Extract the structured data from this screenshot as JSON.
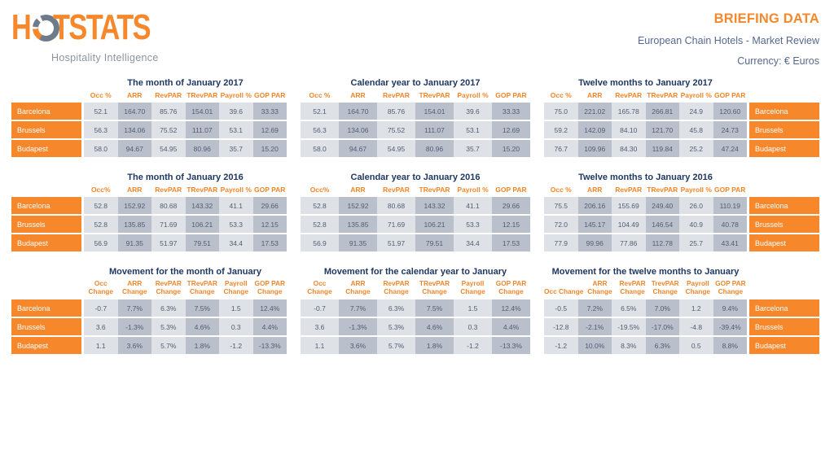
{
  "header": {
    "logo_left": "H",
    "logo_right": "TSTATS",
    "logo_tagline": "Hospitality Intelligence",
    "title": "BRIEFING DATA",
    "subtitle": "European Chain Hotels - Market Review",
    "currency": "Currency: € Euros",
    "accent_orange": "#F6872B",
    "navy": "#1F3864",
    "slate_blue": "#56688E"
  },
  "cities": [
    "Barcelona",
    "Brussels",
    "Budapest"
  ],
  "tables": [
    {
      "title": "The month of January 2017",
      "label_side": "left",
      "movement": false,
      "columns": [
        "Occ %",
        "ARR",
        "RevPAR",
        "TRevPAR",
        "Payroll %",
        "GOP PAR"
      ],
      "rows": [
        {
          "label": "Barcelona",
          "values": [
            "52.1",
            "164.70",
            "85.76",
            "154.01",
            "39.6",
            "33.33"
          ]
        },
        {
          "label": "Brussels",
          "values": [
            "56.3",
            "134.06",
            "75.52",
            "111.07",
            "53.1",
            "12.69"
          ]
        },
        {
          "label": "Budapest",
          "values": [
            "58.0",
            "94.67",
            "54.95",
            "80.96",
            "35.7",
            "15.20"
          ]
        }
      ]
    },
    {
      "title": "Calendar year to January 2017",
      "label_side": "none",
      "movement": false,
      "columns": [
        "Occ %",
        "ARR",
        "RevPAR",
        "TRevPAR",
        "Payroll %",
        "GOP PAR"
      ],
      "rows": [
        {
          "label": "Barcelona",
          "values": [
            "52.1",
            "164.70",
            "85.76",
            "154.01",
            "39.6",
            "33.33"
          ]
        },
        {
          "label": "Brussels",
          "values": [
            "56.3",
            "134.06",
            "75.52",
            "111.07",
            "53.1",
            "12.69"
          ]
        },
        {
          "label": "Budapest",
          "values": [
            "58.0",
            "94.67",
            "54.95",
            "80.96",
            "35.7",
            "15.20"
          ]
        }
      ]
    },
    {
      "title": "Twelve months to January 2017",
      "label_side": "right",
      "movement": false,
      "columns": [
        "Occ %",
        "ARR",
        "RevPAR",
        "TRevPAR",
        "Payroll %",
        "GOP PAR"
      ],
      "rows": [
        {
          "label": "Barcelona",
          "values": [
            "75.0",
            "221.02",
            "165.78",
            "266.81",
            "24.9",
            "120.60"
          ]
        },
        {
          "label": "Brussels",
          "values": [
            "59.2",
            "142.09",
            "84.10",
            "121.70",
            "45.8",
            "24.73"
          ]
        },
        {
          "label": "Budapest",
          "values": [
            "76.7",
            "109.96",
            "84.30",
            "119.84",
            "25.2",
            "47.24"
          ]
        }
      ]
    },
    {
      "title": "The month of January 2016",
      "label_side": "left",
      "movement": false,
      "columns": [
        "Occ%",
        "ARR",
        "RevPAR",
        "TRevPAR",
        "Payroll %",
        "GOP PAR"
      ],
      "rows": [
        {
          "label": "Barcelona",
          "values": [
            "52.8",
            "152.92",
            "80.68",
            "143.32",
            "41.1",
            "29.66"
          ]
        },
        {
          "label": "Brussels",
          "values": [
            "52.8",
            "135.85",
            "71.69",
            "106.21",
            "53.3",
            "12.15"
          ]
        },
        {
          "label": "Budapest",
          "values": [
            "56.9",
            "91.35",
            "51.97",
            "79.51",
            "34.4",
            "17.53"
          ]
        }
      ]
    },
    {
      "title": "Calendar year to January 2016",
      "label_side": "none",
      "movement": false,
      "columns": [
        "Occ%",
        "ARR",
        "RevPAR",
        "TRevPAR",
        "Payroll %",
        "GOP PAR"
      ],
      "rows": [
        {
          "label": "Barcelona",
          "values": [
            "52.8",
            "152.92",
            "80.68",
            "143.32",
            "41.1",
            "29.66"
          ]
        },
        {
          "label": "Brussels",
          "values": [
            "52.8",
            "135.85",
            "71.69",
            "106.21",
            "53.3",
            "12.15"
          ]
        },
        {
          "label": "Budapest",
          "values": [
            "56.9",
            "91.35",
            "51.97",
            "79.51",
            "34.4",
            "17.53"
          ]
        }
      ]
    },
    {
      "title": "Twelve months to January 2016",
      "label_side": "right",
      "movement": false,
      "columns": [
        "Occ %",
        "ARR",
        "RevPAR",
        "TRevPAR",
        "Payroll %",
        "GOP PAR"
      ],
      "rows": [
        {
          "label": "Barcelona",
          "values": [
            "75.5",
            "206.16",
            "155.69",
            "249.40",
            "26.0",
            "110.19"
          ]
        },
        {
          "label": "Brussels",
          "values": [
            "72.0",
            "145.17",
            "104.49",
            "146.54",
            "40.9",
            "40.78"
          ]
        },
        {
          "label": "Budapest",
          "values": [
            "77.9",
            "99.96",
            "77.86",
            "112.78",
            "25.7",
            "43.41"
          ]
        }
      ]
    },
    {
      "title": "Movement for the month of January",
      "label_side": "left",
      "movement": true,
      "columns": [
        "Occ Change",
        "ARR Change",
        "RevPAR Change",
        "TRevPAR Change",
        "Payroll Change",
        "GOP PAR Change"
      ],
      "rows": [
        {
          "label": "Barcelona",
          "values": [
            "-0.7",
            "7.7%",
            "6.3%",
            "7.5%",
            "1.5",
            "12.4%"
          ]
        },
        {
          "label": "Brussels",
          "values": [
            "3.6",
            "-1.3%",
            "5.3%",
            "4.6%",
            "0.3",
            "4.4%"
          ]
        },
        {
          "label": "Budapest",
          "values": [
            "1.1",
            "3.6%",
            "5.7%",
            "1.8%",
            "-1.2",
            "-13.3%"
          ]
        }
      ]
    },
    {
      "title": "Movement for the calendar year to January",
      "label_side": "none",
      "movement": true,
      "columns": [
        "Occ Change",
        "ARR Change",
        "RevPAR Change",
        "TRevPAR Change",
        "Payroll Change",
        "GOP PAR Change"
      ],
      "rows": [
        {
          "label": "Barcelona",
          "values": [
            "-0.7",
            "7.7%",
            "6.3%",
            "7.5%",
            "1.5",
            "12.4%"
          ]
        },
        {
          "label": "Brussels",
          "values": [
            "3.6",
            "-1.3%",
            "5.3%",
            "4.6%",
            "0.3",
            "4.4%"
          ]
        },
        {
          "label": "Budapest",
          "values": [
            "1.1",
            "3.6%",
            "5.7%",
            "1.8%",
            "-1.2",
            "-13.3%"
          ]
        }
      ]
    },
    {
      "title": "Movement for the twelve months to January",
      "label_side": "right",
      "movement": true,
      "columns": [
        "Occ Change",
        "ARR Change",
        "RevPAR Change",
        "TrevPAR Change",
        "Payroll Change",
        "GOP PAR Change"
      ],
      "rows": [
        {
          "label": "Barcelona",
          "values": [
            "-0.5",
            "7.2%",
            "6.5%",
            "7.0%",
            "1.2",
            "9.4%"
          ]
        },
        {
          "label": "Brussels",
          "values": [
            "-12.8",
            "-2.1%",
            "-19.5%",
            "-17.0%",
            "-4.8",
            "-39.4%"
          ]
        },
        {
          "label": "Budapest",
          "values": [
            "-1.2",
            "10.0%",
            "8.3%",
            "6.3%",
            "0.5",
            "8.8%"
          ]
        }
      ]
    }
  ]
}
